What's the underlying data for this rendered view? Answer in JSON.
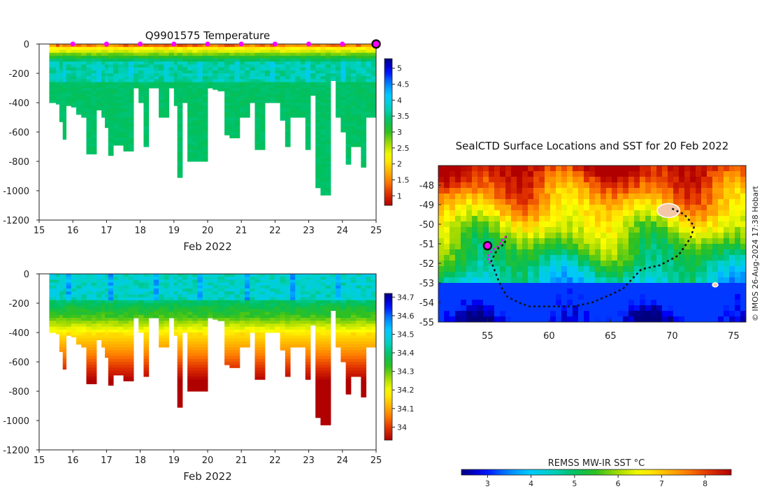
{
  "colors": {
    "jet": [
      "#00007f",
      "#0000ff",
      "#0080ff",
      "#00c8ff",
      "#00d2c8",
      "#00c060",
      "#30c020",
      "#aadc00",
      "#ffff00",
      "#ffc000",
      "#ff8000",
      "#e03000",
      "#b00000"
    ],
    "land": "#f4c7a9",
    "marker": "#ff00ff",
    "track": "#111111"
  },
  "chart_data": [
    {
      "type": "heatmap",
      "name": "temperature-section",
      "title": "Q9901575  Temperature",
      "xlabel": "Feb 2022",
      "ylabel": "",
      "xlim": [
        15,
        25
      ],
      "ylim": [
        -1200,
        0
      ],
      "xticks": [
        "15",
        "16",
        "17",
        "18",
        "19",
        "20",
        "21",
        "22",
        "23",
        "24",
        "25"
      ],
      "yticks": [
        "0",
        "-200",
        "-400",
        "-600",
        "-800",
        "-1000",
        "-1200"
      ],
      "colorbar": {
        "range": [
          0.7,
          5.3
        ],
        "ticks": [
          "1",
          "1.5",
          "2",
          "2.5",
          "3",
          "3.5",
          "4",
          "4.5",
          "5"
        ]
      },
      "markers_x": [
        16,
        17,
        18,
        19,
        20,
        21,
        22,
        23,
        24
      ],
      "current_x": 25,
      "profiles": [
        {
          "t": 15.3,
          "d": 400
        },
        {
          "t": 15.5,
          "d": 410
        },
        {
          "t": 15.6,
          "d": 530
        },
        {
          "t": 15.7,
          "d": 650
        },
        {
          "t": 15.8,
          "d": 420
        },
        {
          "t": 15.95,
          "d": 430
        },
        {
          "t": 16.1,
          "d": 480
        },
        {
          "t": 16.25,
          "d": 500
        },
        {
          "t": 16.4,
          "d": 750
        },
        {
          "t": 16.55,
          "d": 750
        },
        {
          "t": 16.7,
          "d": 450
        },
        {
          "t": 16.85,
          "d": 500
        },
        {
          "t": 16.95,
          "d": 570
        },
        {
          "t": 17.05,
          "d": 760
        },
        {
          "t": 17.2,
          "d": 690
        },
        {
          "t": 17.35,
          "d": 690
        },
        {
          "t": 17.5,
          "d": 730
        },
        {
          "t": 17.65,
          "d": 730
        },
        {
          "t": 17.8,
          "d": 300
        },
        {
          "t": 17.95,
          "d": 400
        },
        {
          "t": 18.1,
          "d": 700
        },
        {
          "t": 18.25,
          "d": 300
        },
        {
          "t": 18.4,
          "d": 300
        },
        {
          "t": 18.55,
          "d": 500
        },
        {
          "t": 18.7,
          "d": 500
        },
        {
          "t": 18.85,
          "d": 300
        },
        {
          "t": 19.0,
          "d": 420
        },
        {
          "t": 19.1,
          "d": 910
        },
        {
          "t": 19.25,
          "d": 400
        },
        {
          "t": 19.4,
          "d": 800
        },
        {
          "t": 19.55,
          "d": 800
        },
        {
          "t": 19.7,
          "d": 800
        },
        {
          "t": 19.85,
          "d": 800
        },
        {
          "t": 20.0,
          "d": 300
        },
        {
          "t": 20.15,
          "d": 310
        },
        {
          "t": 20.3,
          "d": 320
        },
        {
          "t": 20.5,
          "d": 620
        },
        {
          "t": 20.65,
          "d": 640
        },
        {
          "t": 20.8,
          "d": 640
        },
        {
          "t": 20.95,
          "d": 500
        },
        {
          "t": 21.1,
          "d": 500
        },
        {
          "t": 21.25,
          "d": 400
        },
        {
          "t": 21.4,
          "d": 720
        },
        {
          "t": 21.55,
          "d": 720
        },
        {
          "t": 21.7,
          "d": 400
        },
        {
          "t": 21.85,
          "d": 400
        },
        {
          "t": 22.0,
          "d": 400
        },
        {
          "t": 22.15,
          "d": 520
        },
        {
          "t": 22.3,
          "d": 700
        },
        {
          "t": 22.45,
          "d": 500
        },
        {
          "t": 22.6,
          "d": 500
        },
        {
          "t": 22.75,
          "d": 500
        },
        {
          "t": 22.9,
          "d": 720
        },
        {
          "t": 23.05,
          "d": 350
        },
        {
          "t": 23.2,
          "d": 980
        },
        {
          "t": 23.35,
          "d": 1030
        },
        {
          "t": 23.5,
          "d": 1030
        },
        {
          "t": 23.65,
          "d": 250
        },
        {
          "t": 23.8,
          "d": 500
        },
        {
          "t": 23.95,
          "d": 600
        },
        {
          "t": 24.1,
          "d": 820
        },
        {
          "t": 24.25,
          "d": 700
        },
        {
          "t": 24.4,
          "d": 700
        },
        {
          "t": 24.55,
          "d": 840
        },
        {
          "t": 24.7,
          "d": 500
        },
        {
          "t": 24.85,
          "d": 500
        }
      ]
    },
    {
      "type": "heatmap",
      "name": "salinity-section",
      "title": "",
      "xlabel": "Feb 2022",
      "ylabel": "",
      "xlim": [
        15,
        25
      ],
      "ylim": [
        -1200,
        0
      ],
      "xticks": [
        "15",
        "16",
        "17",
        "18",
        "19",
        "20",
        "21",
        "22",
        "23",
        "24",
        "25"
      ],
      "yticks": [
        "0",
        "-200",
        "-400",
        "-600",
        "-800",
        "-1000",
        "-1200"
      ],
      "colorbar": {
        "range": [
          33.93,
          34.72
        ],
        "ticks": [
          "34",
          "34.1",
          "34.2",
          "34.3",
          "34.4",
          "34.5",
          "34.6",
          "34.7"
        ]
      }
    },
    {
      "type": "heatmap",
      "name": "sst-map",
      "title": "SealCTD Surface Locations and SST for 20 Feb 2022",
      "xlabel": "",
      "ylabel": "",
      "xlim": [
        51,
        76
      ],
      "ylim": [
        -55,
        -47
      ],
      "xticks": [
        "55",
        "60",
        "65",
        "70",
        "75"
      ],
      "yticks": [
        "-48",
        "-49",
        "-50",
        "-51",
        "-52",
        "-53",
        "-54",
        "-55"
      ],
      "colorbar_label": "REMSS MW-IR SST °C",
      "colorbar": {
        "range": [
          2.4,
          8.6
        ],
        "ticks": [
          "3",
          "4",
          "5",
          "6",
          "7",
          "8"
        ]
      },
      "credit": "© IMOS 26-Aug-2024 17:38 Hobart",
      "track": [
        [
          56.5,
          -50.6
        ],
        [
          56.4,
          -51.0
        ],
        [
          55.9,
          -51.2
        ],
        [
          55.6,
          -51.5
        ],
        [
          55.3,
          -51.9
        ],
        [
          55.6,
          -52.4
        ],
        [
          55.9,
          -52.9
        ],
        [
          56.2,
          -53.3
        ],
        [
          56.6,
          -53.7
        ],
        [
          57.5,
          -54.0
        ],
        [
          58.4,
          -54.2
        ],
        [
          60,
          -54.2
        ],
        [
          62,
          -54.2
        ],
        [
          63.5,
          -54.0
        ],
        [
          65,
          -53.6
        ],
        [
          66,
          -53.3
        ],
        [
          67.5,
          -52.3
        ],
        [
          69,
          -52.1
        ],
        [
          70.5,
          -51.6
        ],
        [
          71.5,
          -50.7
        ],
        [
          71.8,
          -50.1
        ],
        [
          71.0,
          -49.5
        ],
        [
          70.0,
          -49.2
        ]
      ],
      "magenta_track": [
        [
          56.5,
          -50.6
        ],
        [
          55.9,
          -51.1
        ],
        [
          55.3,
          -51.4
        ],
        [
          55.0,
          -51.7
        ],
        [
          55.2,
          -52.0
        ]
      ],
      "current_location": [
        55.0,
        -51.1
      ],
      "islands": [
        [
          69.7,
          -49.3
        ],
        [
          73.5,
          -53.1
        ]
      ]
    }
  ]
}
